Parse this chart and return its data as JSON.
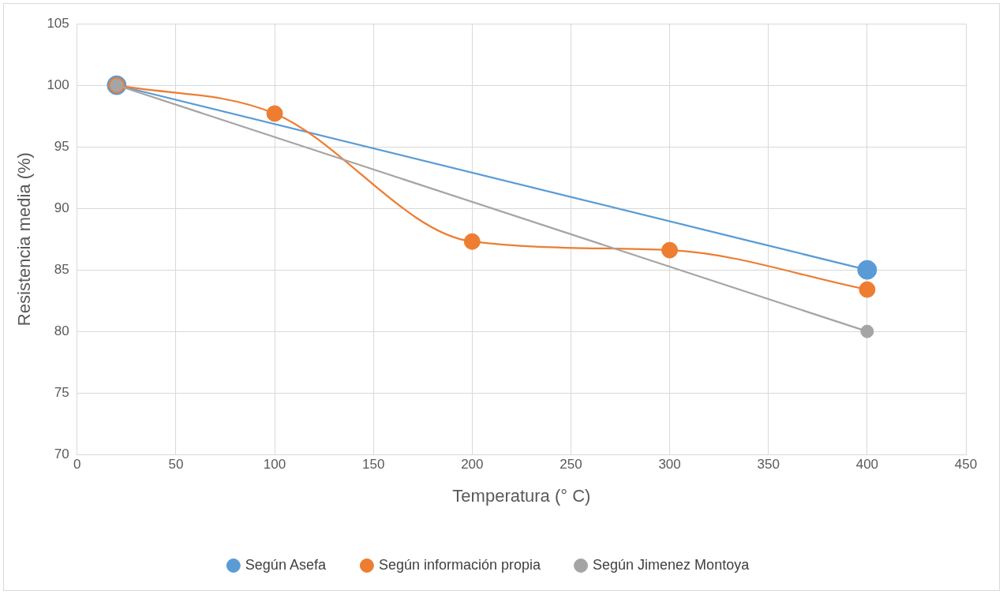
{
  "chart_data": {
    "type": "line",
    "xlabel": "Temperatura (° C)",
    "ylabel": "Resistencia media (%)",
    "xlim": [
      0,
      450
    ],
    "xticks": [
      0,
      50,
      100,
      150,
      200,
      250,
      300,
      350,
      400,
      450
    ],
    "ylim": [
      70,
      105
    ],
    "yticks": [
      70,
      75,
      80,
      85,
      90,
      95,
      100,
      105
    ],
    "grid": true,
    "legend": "bottom",
    "marker": "circle",
    "line_style": "solid",
    "series": [
      {
        "name": "Según Asefa",
        "color": "#5b9bd5",
        "x": [
          20,
          400
        ],
        "values": [
          100,
          85
        ]
      },
      {
        "name": "Según información propia",
        "color": "#ed7d31",
        "x": [
          20,
          100,
          200,
          300,
          400
        ],
        "values": [
          100,
          97.7,
          87.3,
          86.6,
          83.4
        ]
      },
      {
        "name": "Según Jimenez Montoya",
        "color": "#a5a5a5",
        "x": [
          20,
          400
        ],
        "values": [
          100,
          80
        ]
      }
    ]
  }
}
